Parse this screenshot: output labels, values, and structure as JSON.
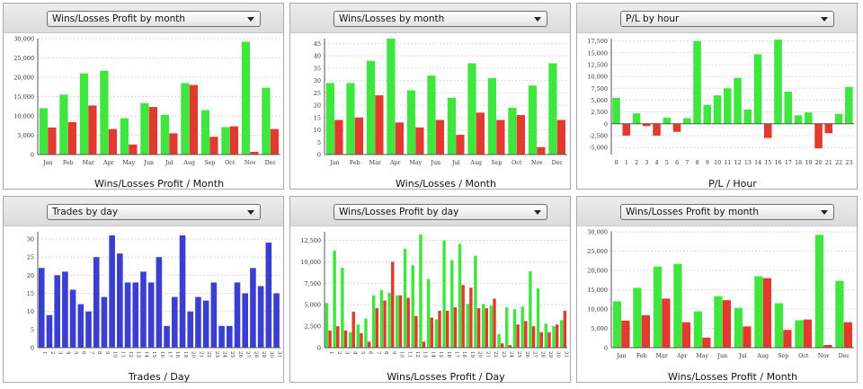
{
  "colors": {
    "win": "#3ee63e",
    "loss": "#e23a2e",
    "trades": "#3a3fd2",
    "grid": "#d9d9d9",
    "axis": "#555555"
  },
  "panels": [
    {
      "dropdown_label": "Wins/Losses Profit by month",
      "icon": "chevron-down-icon"
    },
    {
      "dropdown_label": "Wins/Losses by month",
      "icon": "chevron-down-icon"
    },
    {
      "dropdown_label": "P/L by hour",
      "icon": "chevron-down-icon"
    },
    {
      "dropdown_label": "Trades by day",
      "icon": "chevron-down-icon"
    },
    {
      "dropdown_label": "Wins/Losses Profit by day",
      "icon": "chevron-down-icon"
    },
    {
      "dropdown_label": "Wins/Losses Profit by month",
      "icon": "chevron-down-icon"
    }
  ],
  "chart_data": [
    {
      "type": "bar",
      "xlabel": "Wins/Losses Profit / Month",
      "categories": [
        "Jan",
        "Feb",
        "Mar",
        "Apr",
        "May",
        "Jun",
        "Jul",
        "Aug",
        "Sep",
        "Oct",
        "Nov",
        "Dec"
      ],
      "series": [
        {
          "values": [
            12000,
            15500,
            21000,
            21700,
            9400,
            13300,
            10300,
            18500,
            11500,
            7100,
            29200,
            17300
          ]
        },
        {
          "values": [
            7000,
            8400,
            12700,
            6600,
            2600,
            12300,
            5500,
            18000,
            4600,
            7300,
            700,
            6600
          ]
        }
      ],
      "ylim": [
        0,
        30000
      ],
      "yticks": [
        0,
        5000,
        10000,
        15000,
        20000,
        25000,
        30000
      ],
      "ytick_labels": [
        "0",
        "5,000",
        "10,000",
        "15,000",
        "20,000",
        "25,000",
        "30,000"
      ],
      "grid": true
    },
    {
      "type": "bar",
      "xlabel": "Wins/Losses / Month",
      "categories": [
        "Jan",
        "Feb",
        "Mar",
        "Apr",
        "May",
        "Jun",
        "Jul",
        "Aug",
        "Sep",
        "Oct",
        "Nov",
        "Dec"
      ],
      "series": [
        {
          "values": [
            29,
            29,
            38,
            47,
            26,
            32,
            23,
            37,
            31,
            19,
            28,
            37
          ]
        },
        {
          "values": [
            14,
            15,
            24,
            13,
            11,
            14,
            8,
            17,
            14,
            16,
            3,
            14
          ]
        }
      ],
      "ylim": [
        0,
        47
      ],
      "yticks": [
        0,
        5,
        10,
        15,
        20,
        25,
        30,
        35,
        40,
        45
      ],
      "ytick_labels": [
        "0",
        "5",
        "10",
        "15",
        "20",
        "25",
        "30",
        "35",
        "40",
        "45"
      ],
      "grid": true
    },
    {
      "type": "bar",
      "xlabel": "P/L / Hour",
      "categories": [
        "0",
        "1",
        "2",
        "3",
        "4",
        "5",
        "6",
        "7",
        "8",
        "9",
        "10",
        "11",
        "12",
        "13",
        "14",
        "15",
        "16",
        "17",
        "18",
        "19",
        "20",
        "21",
        "22",
        "23"
      ],
      "values": [
        5500,
        -2500,
        2200,
        -500,
        -2500,
        1300,
        -1700,
        1200,
        17500,
        4000,
        6000,
        7500,
        9700,
        3000,
        14700,
        -3000,
        17800,
        6800,
        1800,
        2400,
        -5200,
        -2000,
        2100,
        7800
      ],
      "ylim": [
        -6500,
        18000
      ],
      "yticks": [
        -5000,
        -2500,
        0,
        2500,
        5000,
        7500,
        10000,
        12500,
        15000,
        17500
      ],
      "ytick_labels": [
        "-5,000",
        "-2,500",
        "0",
        "2,500",
        "5,000",
        "7,500",
        "10,000",
        "12,500",
        "15,000",
        "17,500"
      ],
      "grid": true
    },
    {
      "type": "bar",
      "xlabel": "Trades / Day",
      "categories": [
        "1",
        "2",
        "3",
        "4",
        "5",
        "6",
        "7",
        "8",
        "9",
        "10",
        "11",
        "12",
        "13",
        "14",
        "15",
        "16",
        "17",
        "18",
        "19",
        "20",
        "21",
        "22",
        "23",
        "24",
        "25",
        "26",
        "27",
        "28",
        "29",
        "30",
        "31"
      ],
      "values": [
        22,
        9,
        20,
        21,
        16,
        12,
        10,
        25,
        14,
        31,
        26,
        18,
        18,
        21,
        18,
        25,
        6,
        14,
        31,
        10,
        14,
        13,
        18,
        6,
        6,
        18,
        15,
        22,
        17,
        29,
        15
      ],
      "ylim": [
        0,
        32
      ],
      "yticks": [
        0,
        5,
        10,
        15,
        20,
        25,
        30
      ],
      "ytick_labels": [
        "0",
        "5",
        "10",
        "15",
        "20",
        "25",
        "30"
      ],
      "grid": true
    },
    {
      "type": "bar",
      "xlabel": "Wins/Losses Profit / Day",
      "categories": [
        "1",
        "2",
        "3",
        "4",
        "5",
        "6",
        "7",
        "8",
        "9",
        "10",
        "11",
        "12",
        "13",
        "14",
        "15",
        "16",
        "17",
        "18",
        "19",
        "20",
        "21",
        "22",
        "23",
        "24",
        "25",
        "26",
        "27",
        "28",
        "29",
        "30",
        "31"
      ],
      "series": [
        {
          "values": [
            5200,
            11300,
            9300,
            1800,
            2700,
            3400,
            6100,
            6700,
            6400,
            6100,
            11500,
            9600,
            13200,
            8000,
            3300,
            12500,
            10200,
            12100,
            5100,
            10700,
            5100,
            4900,
            1600,
            4700,
            4500,
            4800,
            8900,
            6900,
            2800,
            2500,
            3200
          ]
        },
        {
          "values": [
            2000,
            2500,
            2000,
            4200,
            1700,
            700,
            4600,
            5500,
            10000,
            6100,
            5800,
            3700,
            700,
            3500,
            4300,
            4300,
            4700,
            7300,
            7000,
            4600,
            4600,
            5700,
            500,
            300,
            2700,
            3100,
            2500,
            1800,
            1800,
            2700,
            4300
          ]
        }
      ],
      "ylim": [
        0,
        13500
      ],
      "yticks": [
        0,
        2500,
        5000,
        7500,
        10000,
        12500
      ],
      "ytick_labels": [
        "0",
        "2,500",
        "5,000",
        "7,500",
        "10,000",
        "12,500"
      ],
      "grid": true
    },
    {
      "type": "bar",
      "xlabel": "Wins/Losses Profit / Month",
      "categories": [
        "Jan",
        "Feb",
        "Mar",
        "Apr",
        "May",
        "Jun",
        "Jul",
        "Aug",
        "Sep",
        "Oct",
        "Nov",
        "Dec"
      ],
      "series": [
        {
          "values": [
            12000,
            15500,
            21000,
            21700,
            9400,
            13300,
            10300,
            18500,
            11500,
            7100,
            29200,
            17300
          ]
        },
        {
          "values": [
            7000,
            8400,
            12700,
            6600,
            2600,
            12300,
            5500,
            18000,
            4600,
            7300,
            700,
            6600
          ]
        }
      ],
      "ylim": [
        0,
        30000
      ],
      "yticks": [
        0,
        5000,
        10000,
        15000,
        20000,
        25000,
        30000
      ],
      "ytick_labels": [
        "0",
        "5,000",
        "10,000",
        "15,000",
        "20,000",
        "25,000",
        "30,000"
      ],
      "grid": true
    }
  ]
}
